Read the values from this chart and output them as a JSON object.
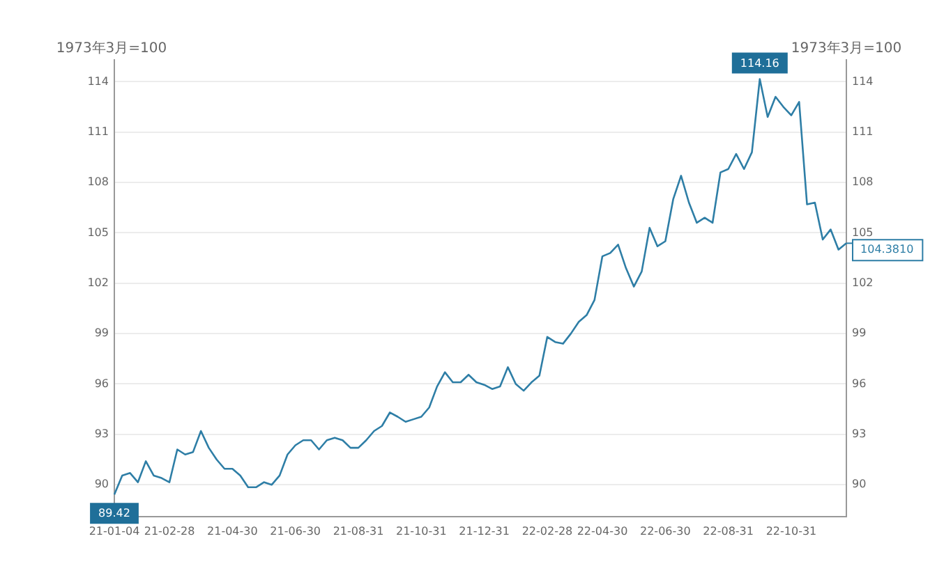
{
  "chart_data": {
    "type": "line",
    "ylabel": "1973年3月=100",
    "y2label": "1973年3月=100",
    "categories": [
      "21-01-04",
      null,
      null,
      null,
      null,
      null,
      null,
      "21-02-28",
      null,
      null,
      null,
      null,
      null,
      null,
      null,
      "21-04-30",
      null,
      null,
      null,
      null,
      null,
      null,
      null,
      "21-06-30",
      null,
      null,
      null,
      null,
      null,
      null,
      null,
      "21-08-31",
      null,
      null,
      null,
      null,
      null,
      null,
      null,
      "21-10-31",
      null,
      null,
      null,
      null,
      null,
      null,
      null,
      "21-12-31",
      null,
      null,
      null,
      null,
      null,
      null,
      null,
      "22-02-28",
      null,
      null,
      null,
      null,
      null,
      null,
      "22-04-30",
      null,
      null,
      null,
      null,
      null,
      null,
      null,
      "22-06-30",
      null,
      null,
      null,
      null,
      null,
      null,
      null,
      "22-08-31",
      null,
      null,
      null,
      null,
      null,
      null,
      null,
      "22-10-31",
      null,
      null,
      null,
      null,
      null,
      null,
      null
    ],
    "series": [
      {
        "color": "#2e7ea6",
        "values": [
          89.42,
          90.55,
          90.7,
          90.15,
          91.4,
          90.55,
          90.4,
          90.15,
          92.1,
          91.8,
          91.95,
          93.2,
          92.2,
          91.5,
          90.95,
          90.95,
          90.55,
          89.85,
          89.85,
          90.15,
          90.0,
          90.55,
          91.8,
          92.35,
          92.65,
          92.65,
          92.1,
          92.65,
          92.8,
          92.65,
          92.2,
          92.2,
          92.65,
          93.2,
          93.5,
          94.3,
          94.05,
          93.75,
          93.9,
          94.05,
          94.6,
          95.85,
          96.7,
          96.1,
          96.1,
          96.55,
          96.1,
          95.95,
          95.7,
          95.85,
          97.0,
          96.0,
          95.6,
          96.1,
          96.5,
          98.8,
          98.5,
          98.4,
          99.0,
          99.7,
          100.1,
          101.0,
          103.6,
          103.8,
          104.3,
          102.9,
          101.8,
          102.7,
          105.3,
          104.2,
          104.5,
          107.0,
          108.4,
          106.8,
          105.6,
          105.9,
          105.6,
          108.6,
          108.8,
          109.7,
          108.8,
          109.8,
          114.16,
          111.9,
          113.1,
          112.5,
          112.0,
          112.8,
          106.7,
          106.8,
          104.6,
          105.2,
          104.0,
          104.381
        ]
      }
    ],
    "ylim": [
      88.1,
      115.3
    ],
    "yticks": [
      90,
      93,
      96,
      99,
      102,
      105,
      108,
      111,
      114
    ],
    "y2lim": [
      88.1,
      115.3
    ],
    "y2ticks": [
      90,
      93,
      96,
      99,
      102,
      105,
      108,
      111,
      114
    ],
    "grid": "y",
    "legend": false,
    "annotations": [
      {
        "text": "89.42",
        "y": 89.42
      },
      {
        "text": "114.16",
        "y": 114.16
      },
      "104.3810"
    ]
  }
}
